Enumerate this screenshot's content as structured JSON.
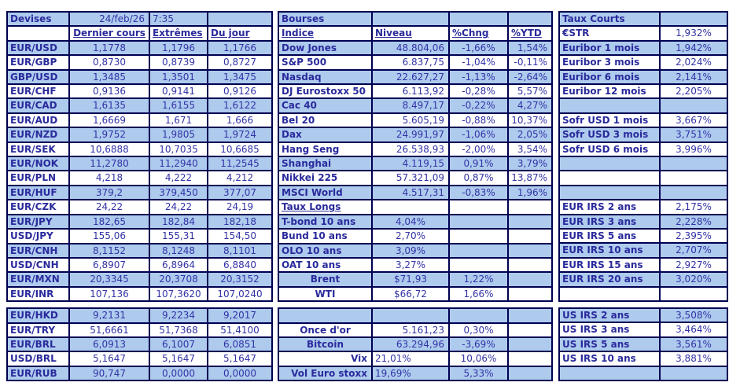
{
  "meta": {
    "date": "24/feb/26",
    "time": "7:35"
  },
  "colors": {
    "row_fill_blue": "#AECBEE",
    "text_indigo": "#3232A6",
    "label_indigo_bold": "#2A2A9C",
    "grid_border_navy": "#000052",
    "background": "#FFFFFF"
  },
  "devises": {
    "title": "Devises",
    "columns": [
      "Dernier cours",
      "Extrêmes",
      "Du jour"
    ],
    "rows_top": [
      {
        "k": "fx",
        "c": [
          "EUR/USD",
          "1,1778",
          "1,1796",
          "1,1766"
        ]
      },
      {
        "k": "fx",
        "c": [
          "EUR/GBP",
          "0,8730",
          "0,8739",
          "0,8727"
        ]
      },
      {
        "k": "fx",
        "c": [
          "GBP/USD",
          "1,3485",
          "1,3501",
          "1,3475"
        ]
      },
      {
        "k": "fx",
        "c": [
          "EUR/CHF",
          "0,9136",
          "0,9141",
          "0,9126"
        ]
      },
      {
        "k": "fx",
        "c": [
          "EUR/CAD",
          "1,6135",
          "1,6155",
          "1,6122"
        ]
      },
      {
        "k": "fx",
        "c": [
          "EUR/AUD",
          "1,6669",
          "1,671",
          "1,666"
        ]
      },
      {
        "k": "fx",
        "c": [
          "EUR/NZD",
          "1,9752",
          "1,9805",
          "1,9724"
        ]
      },
      {
        "k": "fx",
        "c": [
          "EUR/SEK",
          "10,6888",
          "10,7035",
          "10,6685"
        ]
      },
      {
        "k": "fx",
        "c": [
          "EUR/NOK",
          "11,2780",
          "11,2940",
          "11,2545"
        ]
      },
      {
        "k": "fx",
        "c": [
          "EUR/PLN",
          "4,218",
          "4,222",
          "4,212"
        ]
      },
      {
        "k": "fx",
        "c": [
          "EUR/HUF",
          "379,2",
          "379,450",
          "377,07"
        ]
      },
      {
        "k": "fx",
        "c": [
          "EUR/CZK",
          "24,22",
          "24,22",
          "24,19"
        ]
      },
      {
        "k": "fx",
        "c": [
          "EUR/JPY",
          "182,65",
          "182,84",
          "182,18"
        ]
      },
      {
        "k": "fx",
        "c": [
          "USD/JPY",
          "155,06",
          "155,31",
          "154,50"
        ]
      },
      {
        "k": "fx",
        "c": [
          "EUR/CNH",
          "8,1152",
          "8,1248",
          "8,1101"
        ]
      },
      {
        "k": "fx",
        "c": [
          "USD/CNH",
          "6,8907",
          "6,8964",
          "6,8840"
        ]
      },
      {
        "k": "fx",
        "c": [
          "EUR/MXN",
          "20,3345",
          "20,3708",
          "20,3152"
        ]
      },
      {
        "k": "fx",
        "c": [
          "EUR/INR",
          "107,136",
          "107,3620",
          "107,0240"
        ]
      }
    ],
    "rows_bottom": [
      {
        "k": "fx",
        "c": [
          "EUR/HKD",
          "9,2131",
          "9,2234",
          "9,2017"
        ]
      },
      {
        "k": "fx",
        "c": [
          "EUR/TRY",
          "51,6661",
          "51,7368",
          "51,4100"
        ]
      },
      {
        "k": "fx",
        "c": [
          "EUR/BRL",
          "6,0913",
          "6,1007",
          "6,0851"
        ]
      },
      {
        "k": "fx",
        "c": [
          "USD/BRL",
          "5,1647",
          "5,1647",
          "5,1647"
        ]
      },
      {
        "k": "fx",
        "c": [
          "EUR/RUB",
          "90,747",
          "0,0000",
          "0,0000"
        ]
      }
    ]
  },
  "bourses": {
    "title": "Bourses",
    "columns": [
      "Indice",
      "Niveau",
      "%Chng",
      "%YTD"
    ],
    "rows_top": [
      {
        "k": "idx",
        "c": [
          "Dow Jones",
          "48.804,06",
          "-1,66%",
          "1,54%"
        ]
      },
      {
        "k": "idx",
        "c": [
          "S&P 500",
          "6.837,75",
          "-1,04%",
          "-0,11%"
        ]
      },
      {
        "k": "idx",
        "c": [
          "Nasdaq",
          "22.627,27",
          "-1,13%",
          "-2,64%"
        ]
      },
      {
        "k": "idx",
        "c": [
          "DJ Eurostoxx 50",
          "6.113,92",
          "-0,28%",
          "5,57%"
        ]
      },
      {
        "k": "idx",
        "c": [
          "Cac 40",
          "8.497,17",
          "-0,22%",
          "4,27%"
        ]
      },
      {
        "k": "idx",
        "c": [
          "Bel 20",
          "5.605,19",
          "-0,88%",
          "10,37%"
        ]
      },
      {
        "k": "idx",
        "c": [
          "Dax",
          "24.991,97",
          "-1,06%",
          "2,05%"
        ]
      },
      {
        "k": "idx",
        "c": [
          "Hang Seng",
          "26.538,93",
          "-2,00%",
          "3,54%"
        ]
      },
      {
        "k": "idx",
        "c": [
          "Shanghai",
          "4.119,15",
          "0,91%",
          "3,79%"
        ]
      },
      {
        "k": "idx",
        "c": [
          "Nikkei 225",
          "57.321,09",
          "0,87%",
          "13,87%"
        ]
      },
      {
        "k": "idx",
        "c": [
          "MSCI World",
          "4.517,31",
          "-0,83%",
          "1,96%"
        ]
      },
      {
        "k": "sec",
        "c": [
          "Taux Longs",
          "",
          "",
          ""
        ]
      },
      {
        "k": "bond",
        "c": [
          "T-bond 10 ans",
          "4,04%",
          "",
          ""
        ]
      },
      {
        "k": "bond",
        "c": [
          "Bund 10 ans",
          "2,70%",
          "",
          ""
        ]
      },
      {
        "k": "bond",
        "c": [
          "OLO 10 ans",
          "3,09%",
          "",
          ""
        ]
      },
      {
        "k": "bond",
        "c": [
          "OAT 10 ans",
          "3,27%",
          "",
          ""
        ]
      },
      {
        "k": "cmd",
        "c": [
          "Brent",
          "$71,93",
          "1,22%",
          ""
        ]
      },
      {
        "k": "cmd",
        "c": [
          "WTI",
          "$66,72",
          "1,66%",
          ""
        ]
      }
    ],
    "rows_bottom": [
      {
        "k": "empty",
        "c": [
          "",
          "",
          "",
          ""
        ]
      },
      {
        "k": "spot",
        "c": [
          "Once d'or",
          "5.161,23",
          "0,30%",
          ""
        ]
      },
      {
        "k": "spot",
        "c": [
          "Bitcoin",
          "63.294,96",
          "-3,69%",
          ""
        ]
      },
      {
        "k": "vol",
        "c": [
          "Vix",
          "21,01%",
          "10,06%",
          ""
        ]
      },
      {
        "k": "vol",
        "c": [
          "Vol Euro stoxx",
          "19,69%",
          "5,33%",
          ""
        ]
      }
    ]
  },
  "taux_courts": {
    "title": "Taux Courts",
    "rows_top": [
      {
        "k": "rate",
        "c": [
          "€STR",
          "1,932%"
        ]
      },
      {
        "k": "rate",
        "c": [
          "Euribor 1 mois",
          "1,942%"
        ]
      },
      {
        "k": "rate",
        "c": [
          "Euribor 3 mois",
          "2,024%"
        ]
      },
      {
        "k": "rate",
        "c": [
          "Euribor 6 mois",
          "2,141%"
        ]
      },
      {
        "k": "rate",
        "c": [
          "Euribor 12 mois",
          "2,205%"
        ]
      },
      {
        "k": "empty",
        "c": [
          "",
          ""
        ]
      },
      {
        "k": "rate",
        "c": [
          "Sofr USD 1 mois",
          "3,667%"
        ]
      },
      {
        "k": "rate",
        "c": [
          "Sofr USD 3 mois",
          "3,751%"
        ]
      },
      {
        "k": "rate",
        "c": [
          "Sofr USD 6 mois",
          "3,996%"
        ]
      },
      {
        "k": "empty",
        "c": [
          "",
          ""
        ]
      },
      {
        "k": "empty",
        "c": [
          "",
          ""
        ]
      },
      {
        "k": "empty",
        "c": [
          "",
          ""
        ]
      },
      {
        "k": "rate",
        "c": [
          "EUR IRS 2 ans",
          "2,175%"
        ]
      },
      {
        "k": "rate",
        "c": [
          "EUR IRS 3 ans",
          "2,228%"
        ]
      },
      {
        "k": "rate",
        "c": [
          "EUR IRS 5 ans",
          "2,395%"
        ]
      },
      {
        "k": "rate",
        "c": [
          "EUR IRS 10 ans",
          "2,707%"
        ]
      },
      {
        "k": "rate",
        "c": [
          "EUR IRS 15 ans",
          "2,927%"
        ]
      },
      {
        "k": "rate",
        "c": [
          "EUR IRS 20 ans",
          "3,020%"
        ]
      },
      {
        "k": "empty",
        "c": [
          "",
          ""
        ]
      }
    ],
    "rows_bottom": [
      {
        "k": "rate",
        "c": [
          "US IRS 2 ans",
          "3,508%"
        ]
      },
      {
        "k": "rate",
        "c": [
          "US IRS 3 ans",
          "3,464%"
        ]
      },
      {
        "k": "rate",
        "c": [
          "US IRS 5 ans",
          "3,561%"
        ]
      },
      {
        "k": "rate",
        "c": [
          "US IRS 10 ans",
          "3,881%"
        ]
      },
      {
        "k": "empty",
        "c": [
          "",
          ""
        ]
      }
    ]
  }
}
